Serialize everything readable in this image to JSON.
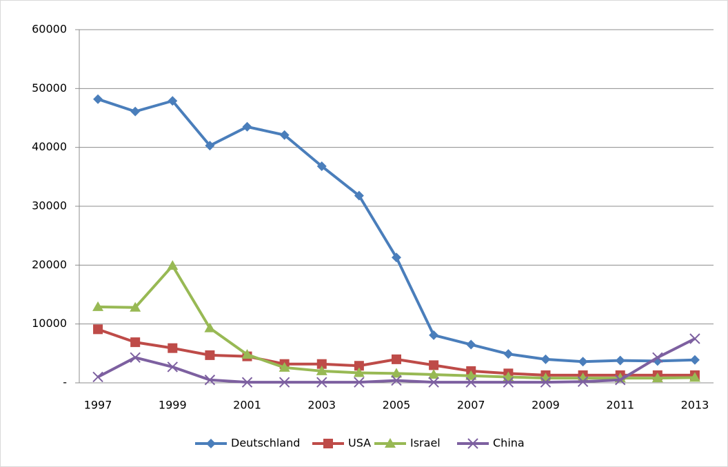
{
  "chart_data": {
    "type": "line",
    "categories": [
      1997,
      null,
      1999,
      null,
      2001,
      null,
      2003,
      null,
      2005,
      null,
      2007,
      null,
      2009,
      null,
      2011,
      null,
      2013
    ],
    "series": [
      {
        "name": "Deutschland",
        "color": "#4a7ebb",
        "marker": "diamond",
        "values": [
          48200,
          46100,
          47900,
          40300,
          43500,
          42100,
          36800,
          31800,
          21300,
          8100,
          6500,
          4900,
          4000,
          3600,
          3800,
          3700,
          3900
        ]
      },
      {
        "name": "USA",
        "color": "#be4b48",
        "marker": "square",
        "values": [
          9100,
          6900,
          5900,
          4700,
          4500,
          3200,
          3200,
          2900,
          4000,
          3000,
          2000,
          1600,
          1300,
          1300,
          1300,
          1300,
          1300
        ]
      },
      {
        "name": "Israel",
        "color": "#98b954",
        "marker": "triangle",
        "values": [
          12900,
          12800,
          19900,
          9300,
          4800,
          2600,
          2000,
          1700,
          1600,
          1400,
          1200,
          1000,
          800,
          800,
          800,
          800,
          900
        ]
      },
      {
        "name": "China",
        "color": "#7d60a0",
        "marker": "x",
        "values": [
          1000,
          4300,
          2700,
          500,
          100,
          100,
          100,
          100,
          400,
          100,
          100,
          100,
          100,
          200,
          500,
          4300,
          7500
        ]
      }
    ],
    "ylim": [
      0,
      60000
    ],
    "yticks": [
      {
        "value": 0,
        "label": "-"
      },
      10000,
      20000,
      30000,
      40000,
      50000,
      60000
    ],
    "grid": true,
    "legend": "bottom"
  }
}
